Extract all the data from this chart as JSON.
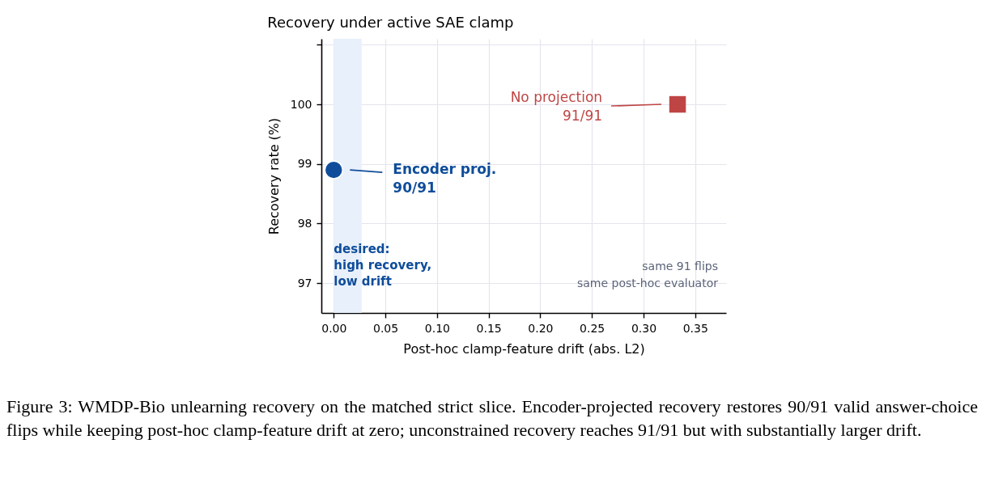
{
  "chart_data": {
    "type": "scatter",
    "title": "Recovery under active SAE clamp",
    "xlabel": "Post-hoc clamp-feature drift (abs. L2)",
    "ylabel": "Recovery rate (%)",
    "xlim": [
      -0.012,
      0.38
    ],
    "xticks": [
      {
        "value": 0,
        "label": "0.00"
      },
      0.05,
      {
        "value": 0.1,
        "label": "0.10"
      },
      0.15,
      {
        "value": 0.2,
        "label": "0.20"
      },
      0.25,
      {
        "value": 0.3,
        "label": "0.30"
      },
      0.35
    ],
    "ylim": [
      96.5,
      101.1
    ],
    "yticks": [
      97,
      98,
      99,
      100,
      {
        "value": 101,
        "label": null
      }
    ],
    "grid": true,
    "series": [
      {
        "name": "Encoder proj.",
        "color": "#0f4d9a",
        "marker": "circle",
        "x": [
          0
        ],
        "values": [
          98.9
        ]
      },
      {
        "name": "No projection",
        "color": "#bf4545",
        "marker": "square",
        "x": [
          0.333
        ],
        "values": [
          100
        ]
      }
    ],
    "bands": [
      {
        "axis": "x",
        "from": 0,
        "to": 0.027,
        "label": "desired:\nhigh recovery,\nlow drift",
        "color": "#e8f0fb"
      }
    ],
    "annotations": [
      "90/91",
      "91/91",
      "same 91 flips",
      "same post-hoc evaluator",
      "Figure 3: WMDP-Bio unlearning recovery on the matched strict slice. Encoder-projected recovery restores 90/91 valid answer-choice flips while keeping post-hoc clamp-feature drift at zero; unconstrained recovery reaches 91/91 but with substantially larger drift."
    ]
  }
}
